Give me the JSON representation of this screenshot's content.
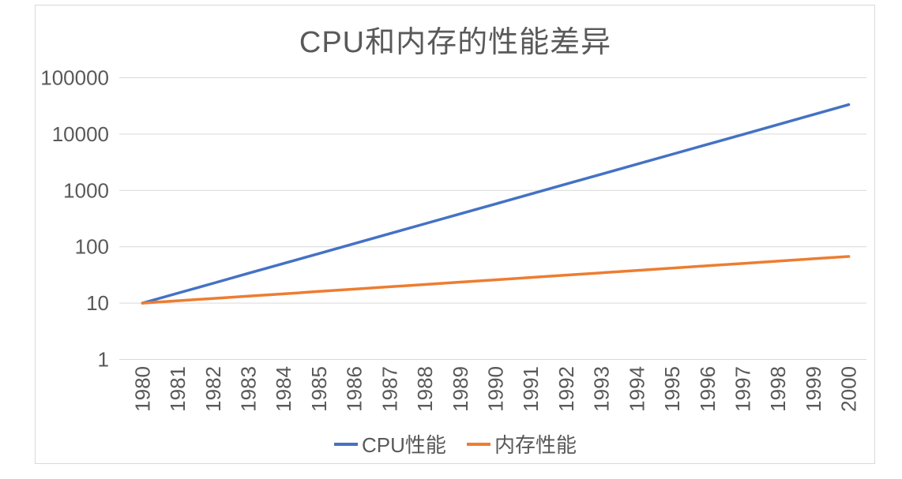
{
  "title": "CPU和内存的性能差异",
  "colors": {
    "cpu_series": "#4472C4",
    "memory_series": "#ED7D31",
    "gridline": "#D9D9D9",
    "frame_border": "#D9D9D9",
    "text": "#595959",
    "background": "#FFFFFF"
  },
  "chart_data": {
    "type": "line",
    "title": "CPU和内存的性能差异",
    "categories": [
      "1980",
      "1981",
      "1982",
      "1983",
      "1984",
      "1985",
      "1986",
      "1987",
      "1988",
      "1989",
      "1990",
      "1991",
      "1992",
      "1993",
      "1994",
      "1995",
      "1996",
      "1997",
      "1998",
      "1999",
      "2000"
    ],
    "series": [
      {
        "name": "CPU性能",
        "color": "#4472C4",
        "values": [
          10,
          15,
          22.5,
          33.8,
          50.6,
          75.9,
          113.9,
          170.9,
          256.3,
          384.4,
          576.7,
          865.0,
          1297.5,
          1946.2,
          2919.3,
          4378.9,
          6568.4,
          9852.6,
          14778.9,
          22168.4,
          33252.6
        ]
      },
      {
        "name": "内存性能",
        "color": "#ED7D31",
        "values": [
          10,
          11,
          12.1,
          13.3,
          14.6,
          16.1,
          17.7,
          19.5,
          21.4,
          23.6,
          25.9,
          28.5,
          31.4,
          34.5,
          38.0,
          41.8,
          45.9,
          50.5,
          55.6,
          61.2,
          67.3
        ]
      }
    ],
    "xlabel": "",
    "ylabel": "",
    "y_axis": {
      "scale": "log",
      "min": 1,
      "max": 100000,
      "ticks": [
        1,
        10,
        100,
        1000,
        10000,
        100000
      ]
    },
    "x_axis": {
      "label_rotation": -90
    },
    "grid": "horizontal",
    "legend_position": "bottom"
  }
}
